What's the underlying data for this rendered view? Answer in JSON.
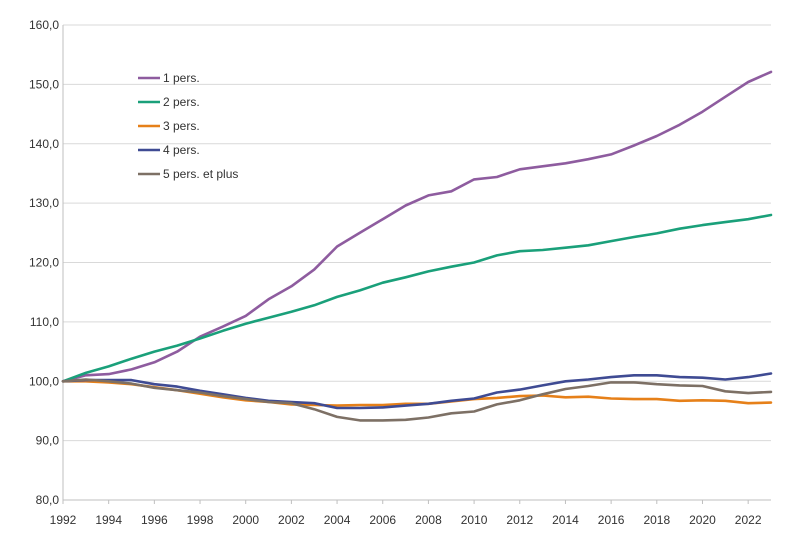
{
  "chart_data": {
    "type": "line",
    "title": "",
    "xlabel": "",
    "ylabel": "",
    "xlim": [
      1992,
      2023
    ],
    "ylim": [
      80,
      160
    ],
    "y_ticks": [
      "80,0",
      "90,0",
      "100,0",
      "110,0",
      "120,0",
      "130,0",
      "140,0",
      "150,0",
      "160,0"
    ],
    "x_ticks": [
      "1992",
      "1994",
      "1996",
      "1998",
      "2000",
      "2002",
      "2004",
      "2006",
      "2008",
      "2010",
      "2012",
      "2014",
      "2016",
      "2018",
      "2020",
      "2022"
    ],
    "grid": "horizontal",
    "legend_position": "top-left",
    "x": [
      1992,
      1993,
      1994,
      1995,
      1996,
      1997,
      1998,
      1999,
      2000,
      2001,
      2002,
      2003,
      2004,
      2005,
      2006,
      2007,
      2008,
      2009,
      2010,
      2011,
      2012,
      2013,
      2014,
      2015,
      2016,
      2017,
      2018,
      2019,
      2020,
      2021,
      2022,
      2023
    ],
    "series": [
      {
        "name": "1 pers.",
        "color": "#8e5c9f",
        "values": [
          100.0,
          101.0,
          101.2,
          102.0,
          103.2,
          105.0,
          107.5,
          109.2,
          111.0,
          113.8,
          116.0,
          118.8,
          122.7,
          125.0,
          127.3,
          129.6,
          131.3,
          132.0,
          134.0,
          134.4,
          135.7,
          136.2,
          136.7,
          137.4,
          138.2,
          139.7,
          141.3,
          143.2,
          145.4,
          147.9,
          150.4,
          152.1
        ]
      },
      {
        "name": "2 pers.",
        "color": "#1aa07a",
        "values": [
          100.0,
          101.4,
          102.5,
          103.8,
          105.0,
          106.0,
          107.2,
          108.5,
          109.7,
          110.7,
          111.7,
          112.8,
          114.2,
          115.3,
          116.6,
          117.5,
          118.5,
          119.3,
          120.0,
          121.2,
          121.9,
          122.1,
          122.5,
          122.9,
          123.6,
          124.3,
          124.9,
          125.7,
          126.3,
          126.8,
          127.3,
          128.0
        ]
      },
      {
        "name": "3 pers.",
        "color": "#e68019",
        "values": [
          100.0,
          100.0,
          99.8,
          99.5,
          99.0,
          98.5,
          97.9,
          97.3,
          96.8,
          96.5,
          96.1,
          96.0,
          95.9,
          96.0,
          96.0,
          96.2,
          96.2,
          96.6,
          97.0,
          97.2,
          97.5,
          97.6,
          97.3,
          97.4,
          97.1,
          97.0,
          97.0,
          96.7,
          96.8,
          96.7,
          96.3,
          96.4
        ]
      },
      {
        "name": "4 pers.",
        "color": "#3f4b93",
        "values": [
          100.0,
          100.2,
          100.2,
          100.2,
          99.5,
          99.1,
          98.4,
          97.8,
          97.2,
          96.7,
          96.5,
          96.3,
          95.5,
          95.5,
          95.6,
          95.9,
          96.2,
          96.7,
          97.1,
          98.1,
          98.6,
          99.3,
          100.0,
          100.3,
          100.7,
          101.0,
          101.0,
          100.7,
          100.6,
          100.3,
          100.7,
          101.3
        ]
      },
      {
        "name": "5 pers. et plus",
        "color": "#7d7065",
        "values": [
          100.0,
          100.3,
          100.0,
          99.6,
          98.9,
          98.5,
          98.1,
          97.5,
          97.0,
          96.5,
          96.3,
          95.3,
          94.0,
          93.4,
          93.4,
          93.5,
          93.9,
          94.6,
          94.9,
          96.1,
          96.8,
          97.8,
          98.7,
          99.2,
          99.8,
          99.8,
          99.5,
          99.3,
          99.2,
          98.3,
          98.0,
          98.2
        ]
      }
    ]
  }
}
